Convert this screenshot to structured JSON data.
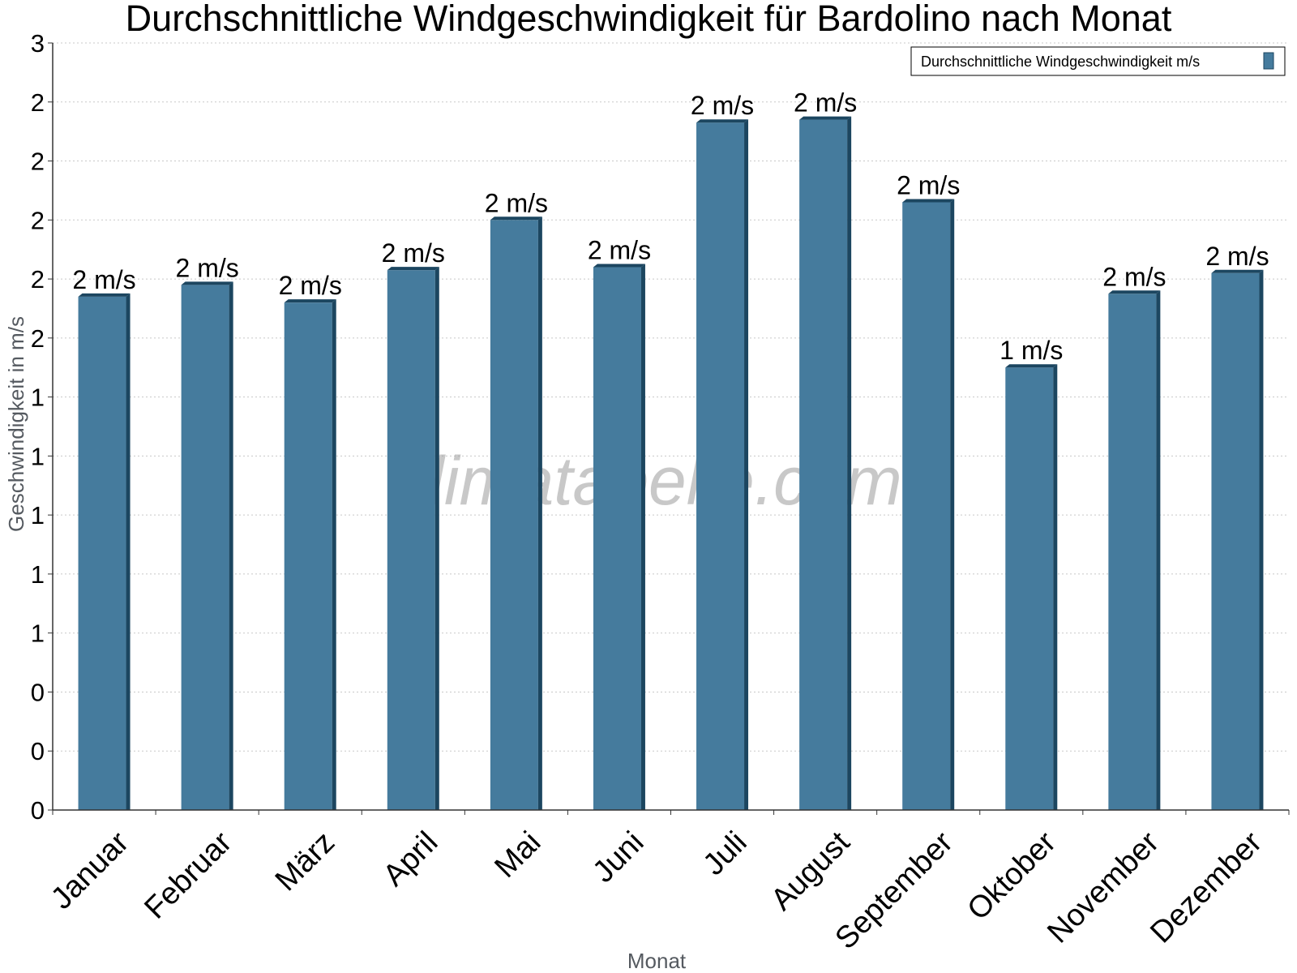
{
  "chart_data": {
    "type": "bar",
    "title": "Durchschnittliche Windgeschwindigkeit für Bardolino nach Monat",
    "xlabel": "Monat",
    "ylabel": "Geschwindigkeit in m/s",
    "ylim": [
      0,
      2.6
    ],
    "yticks": [
      0,
      0.2,
      0.4,
      0.6,
      0.8,
      1.0,
      1.2,
      1.4,
      1.6,
      1.8,
      2.0,
      2.2,
      2.4,
      2.6
    ],
    "ytick_labels": [
      "0",
      "0",
      "0",
      "1",
      "1",
      "1",
      "1",
      "1",
      "2",
      "2",
      "2",
      "2",
      "2",
      "3"
    ],
    "grid": true,
    "legend_position": "top-right",
    "categories": [
      "Januar",
      "Februar",
      "März",
      "April",
      "Mai",
      "Juni",
      "Juli",
      "August",
      "September",
      "Oktober",
      "November",
      "Dezember"
    ],
    "series": [
      {
        "name": "Durchschnittliche Windgeschwindigkeit m/s",
        "color": "#457b9d",
        "values": [
          1.74,
          1.78,
          1.72,
          1.83,
          2.0,
          1.84,
          2.33,
          2.34,
          2.06,
          1.5,
          1.75,
          1.82
        ],
        "data_labels": [
          "2 m/s",
          "2 m/s",
          "2 m/s",
          "2 m/s",
          "2 m/s",
          "2 m/s",
          "2 m/s",
          "2 m/s",
          "2 m/s",
          "1 m/s",
          "2 m/s",
          "2 m/s"
        ]
      }
    ],
    "watermark": "klimatabelle.com"
  }
}
